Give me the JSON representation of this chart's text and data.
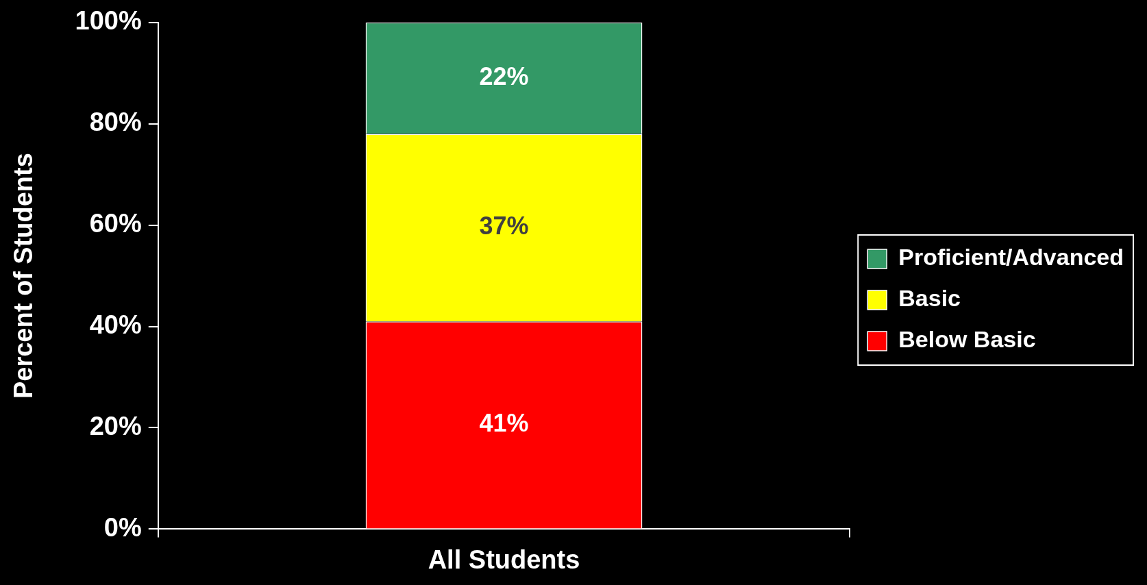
{
  "chart_data": {
    "type": "bar",
    "stacked": true,
    "ylabel": "Percent of Students",
    "categories": [
      "All Students"
    ],
    "series": [
      {
        "name": "Below Basic",
        "color": "#ff0000",
        "values": [
          41
        ],
        "value_labels": [
          "41%"
        ]
      },
      {
        "name": "Basic",
        "color": "#ffff00",
        "values": [
          37
        ],
        "value_labels": [
          "37%"
        ]
      },
      {
        "name": "Proficient/Advanced",
        "color": "#339966",
        "values": [
          22
        ],
        "value_labels": [
          "22%"
        ]
      }
    ],
    "ylim": [
      0,
      100
    ],
    "yticks": [
      {
        "value": 0,
        "label": "0%"
      },
      {
        "value": 20,
        "label": "20%"
      },
      {
        "value": 40,
        "label": "40%"
      },
      {
        "value": 60,
        "label": "60%"
      },
      {
        "value": 80,
        "label": "80%"
      },
      {
        "value": 100,
        "label": "100%"
      }
    ],
    "grid": false,
    "legend": "right"
  }
}
